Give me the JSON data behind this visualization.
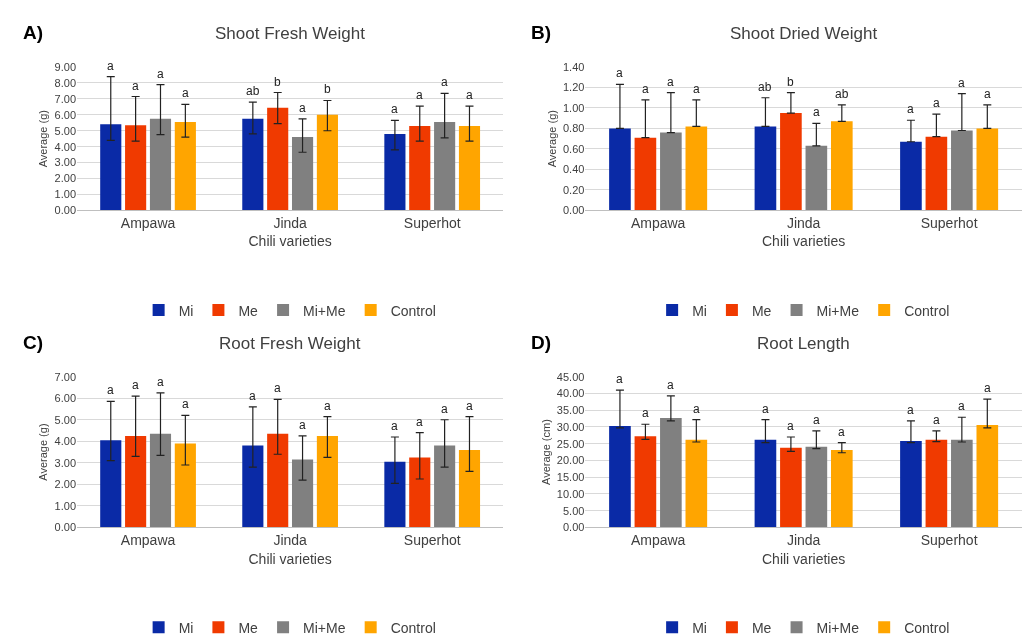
{
  "chart_data": [
    {
      "type": "bar",
      "title": "Shoot Fresh Weight",
      "xlabel": "Chili varieties",
      "ylabel": "Average (g)",
      "categories": [
        "Ampawa",
        "Jinda",
        "Superhot"
      ],
      "ylim": [
        0,
        9
      ],
      "yticks": [
        {
          "value": 0,
          "label": "0.00"
        },
        {
          "value": 1,
          "label": "1.00"
        },
        {
          "value": 2,
          "label": "2.00"
        },
        {
          "value": 3,
          "label": "3.00"
        },
        {
          "value": 4,
          "label": "4.00"
        },
        {
          "value": 5,
          "label": "5.00"
        },
        {
          "value": 6,
          "label": "6.00"
        },
        {
          "value": 7,
          "label": "7.00"
        },
        {
          "value": 8,
          "label": "8.00"
        },
        {
          "value": 9,
          "label": "9.00"
        }
      ],
      "grid": "y",
      "legend": "bottom",
      "series": [
        {
          "name": "Mi",
          "color": "#0a2aa6",
          "values": [
            5.4,
            5.75,
            4.8
          ],
          "errors": [
            [
              4.4,
              8.4
            ],
            [
              4.8,
              6.8
            ],
            [
              3.8,
              5.65
            ]
          ]
        },
        {
          "name": "Me",
          "color": "#f03a00",
          "values": [
            5.35,
            6.45,
            5.3
          ],
          "errors": [
            [
              4.35,
              7.15
            ],
            [
              5.45,
              7.4
            ],
            [
              4.35,
              6.55
            ]
          ]
        },
        {
          "name": "Mi+Me",
          "color": "#808080",
          "values": [
            5.75,
            4.6,
            5.55
          ],
          "errors": [
            [
              4.75,
              7.9
            ],
            [
              3.65,
              5.75
            ],
            [
              4.55,
              7.35
            ]
          ]
        },
        {
          "name": "Control",
          "color": "#ffa500",
          "values": [
            5.55,
            6.0,
            5.3
          ],
          "errors": [
            [
              4.6,
              6.65
            ],
            [
              5.0,
              6.9
            ],
            [
              4.35,
              6.55
            ]
          ]
        }
      ],
      "annotations": [
        "A)",
        "a",
        "a",
        "a",
        "a",
        "ab",
        "b",
        "a",
        "b",
        "a",
        "a",
        "a",
        "a"
      ]
    },
    {
      "type": "bar",
      "title": "Shoot Dried Weight",
      "xlabel": "Chili varieties",
      "ylabel": "Average (g)",
      "categories": [
        "Ampawa",
        "Jinda",
        "Superhot"
      ],
      "ylim": [
        0,
        1.4
      ],
      "yticks": [
        {
          "value": 0,
          "label": "0.00"
        },
        {
          "value": 0.2,
          "label": "0.20"
        },
        {
          "value": 0.4,
          "label": "0.40"
        },
        {
          "value": 0.6,
          "label": "0.60"
        },
        {
          "value": 0.8,
          "label": "0.80"
        },
        {
          "value": 1.0,
          "label": "1.00"
        },
        {
          "value": 1.2,
          "label": "1.20"
        },
        {
          "value": 1.4,
          "label": "1.40"
        }
      ],
      "grid": "y",
      "legend": "bottom",
      "series": [
        {
          "name": "Mi",
          "color": "#0a2aa6",
          "values": [
            0.8,
            0.82,
            0.67
          ],
          "errors": [
            [
              0.8,
              1.23
            ],
            [
              0.82,
              1.1
            ],
            [
              0.67,
              0.88
            ]
          ]
        },
        {
          "name": "Me",
          "color": "#f03a00",
          "values": [
            0.71,
            0.95,
            0.72
          ],
          "errors": [
            [
              0.71,
              1.08
            ],
            [
              0.95,
              1.15
            ],
            [
              0.72,
              0.94
            ]
          ]
        },
        {
          "name": "Mi+Me",
          "color": "#808080",
          "values": [
            0.76,
            0.63,
            0.78
          ],
          "errors": [
            [
              0.76,
              1.15
            ],
            [
              0.63,
              0.85
            ],
            [
              0.78,
              1.14
            ]
          ]
        },
        {
          "name": "Control",
          "color": "#ffa500",
          "values": [
            0.82,
            0.87,
            0.8
          ],
          "errors": [
            [
              0.82,
              1.08
            ],
            [
              0.87,
              1.03
            ],
            [
              0.8,
              1.03
            ]
          ]
        }
      ],
      "annotations": [
        "B)",
        "a",
        "a",
        "a",
        "a",
        "ab",
        "b",
        "a",
        "ab",
        "a",
        "a",
        "a",
        "a"
      ]
    },
    {
      "type": "bar",
      "title": "Root Fresh Weight",
      "xlabel": "Chili varieties",
      "ylabel": "Average (g)",
      "categories": [
        "Ampawa",
        "Jinda",
        "Superhot"
      ],
      "ylim": [
        0,
        7
      ],
      "yticks": [
        {
          "value": 0,
          "label": "0.00"
        },
        {
          "value": 1,
          "label": "1.00"
        },
        {
          "value": 2,
          "label": "2.00"
        },
        {
          "value": 3,
          "label": "3.00"
        },
        {
          "value": 4,
          "label": "4.00"
        },
        {
          "value": 5,
          "label": "5.00"
        },
        {
          "value": 6,
          "label": "6.00"
        },
        {
          "value": 7,
          "label": "7.00"
        }
      ],
      "grid": "y",
      "legend": "bottom",
      "series": [
        {
          "name": "Mi",
          "color": "#0a2aa6",
          "values": [
            4.05,
            3.8,
            3.05
          ],
          "errors": [
            [
              3.1,
              5.85
            ],
            [
              2.8,
              5.6
            ],
            [
              2.05,
              4.2
            ]
          ]
        },
        {
          "name": "Me",
          "color": "#f03a00",
          "values": [
            4.25,
            4.35,
            3.25
          ],
          "errors": [
            [
              3.3,
              6.1
            ],
            [
              3.4,
              5.95
            ],
            [
              2.25,
              4.4
            ]
          ]
        },
        {
          "name": "Mi+Me",
          "color": "#808080",
          "values": [
            4.35,
            3.15,
            3.8
          ],
          "errors": [
            [
              3.35,
              6.25
            ],
            [
              2.2,
              4.25
            ],
            [
              2.8,
              5.0
            ]
          ]
        },
        {
          "name": "Control",
          "color": "#ffa500",
          "values": [
            3.9,
            4.25,
            3.6
          ],
          "errors": [
            [
              2.9,
              5.2
            ],
            [
              3.25,
              5.15
            ],
            [
              2.6,
              5.15
            ]
          ]
        }
      ],
      "annotations": [
        "C)",
        "a",
        "a",
        "a",
        "a",
        "a",
        "a",
        "a",
        "a",
        "a",
        "a",
        "a",
        "a"
      ]
    },
    {
      "type": "bar",
      "title": "Root Length",
      "xlabel": "Chili varieties",
      "ylabel": "Average (cm)",
      "categories": [
        "Ampawa",
        "Jinda",
        "Superhot"
      ],
      "ylim": [
        0,
        45
      ],
      "yticks": [
        {
          "value": 0,
          "label": "0.00"
        },
        {
          "value": 5,
          "label": "5.00"
        },
        {
          "value": 10,
          "label": "10.00"
        },
        {
          "value": 15,
          "label": "15.00"
        },
        {
          "value": 20,
          "label": "20.00"
        },
        {
          "value": 25,
          "label": "25.00"
        },
        {
          "value": 30,
          "label": "30.00"
        },
        {
          "value": 35,
          "label": "35.00"
        },
        {
          "value": 40,
          "label": "40.00"
        },
        {
          "value": 45,
          "label": "45.00"
        }
      ],
      "grid": "y",
      "legend": "bottom",
      "series": [
        {
          "name": "Mi",
          "color": "#0a2aa6",
          "values": [
            30.3,
            26.2,
            25.8
          ],
          "errors": [
            [
              29.7,
              41.0
            ],
            [
              25.3,
              32.2
            ],
            [
              25.3,
              31.8
            ]
          ]
        },
        {
          "name": "Me",
          "color": "#f03a00",
          "values": [
            27.2,
            23.8,
            26.2
          ],
          "errors": [
            [
              26.3,
              30.8
            ],
            [
              22.7,
              27.0
            ],
            [
              25.6,
              28.8
            ]
          ]
        },
        {
          "name": "Mi+Me",
          "color": "#808080",
          "values": [
            32.7,
            24.1,
            26.2
          ],
          "errors": [
            [
              31.8,
              39.3
            ],
            [
              23.5,
              28.8
            ],
            [
              25.5,
              32.9
            ]
          ]
        },
        {
          "name": "Control",
          "color": "#ffa500",
          "values": [
            26.2,
            23.1,
            30.6
          ],
          "errors": [
            [
              25.5,
              32.2
            ],
            [
              22.3,
              25.3
            ],
            [
              29.7,
              38.3
            ]
          ]
        }
      ],
      "annotations": [
        "D)",
        "a",
        "a",
        "a",
        "a",
        "a",
        "a",
        "a",
        "a",
        "a",
        "a",
        "a",
        "a"
      ]
    }
  ]
}
